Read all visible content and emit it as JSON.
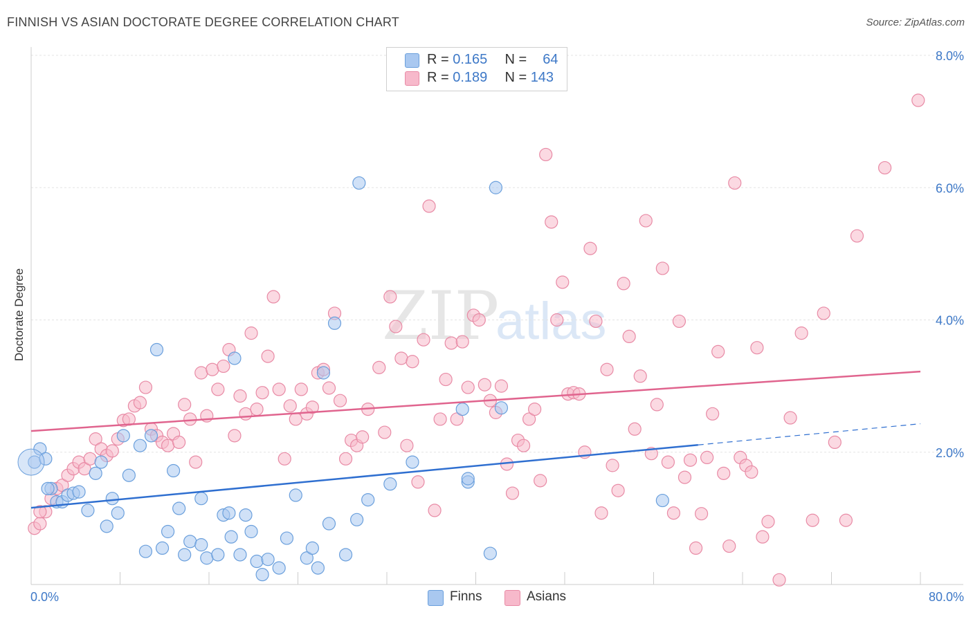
{
  "header": {
    "title": "FINNISH VS ASIAN DOCTORATE DEGREE CORRELATION CHART",
    "source": "Source: ZipAtlas.com"
  },
  "legend": {
    "rows": [
      {
        "r_label": "R =",
        "r_value": "0.165",
        "n_label": "N =",
        "n_value": "64",
        "color": "#a9c8f0"
      },
      {
        "r_label": "R =",
        "r_value": "0.189",
        "n_label": "N =",
        "n_value": "143",
        "color": "#f7b9cb"
      }
    ]
  },
  "bottom_legend": {
    "finns": "Finns",
    "asians": "Asians"
  },
  "watermark": {
    "zip": "ZIP",
    "atlas": "atlas"
  },
  "chart_data": {
    "type": "scatter",
    "title": "FINNISH VS ASIAN DOCTORATE DEGREE CORRELATION CHART",
    "xlabel": "",
    "ylabel": "Doctorate Degree",
    "xlim": [
      0,
      80
    ],
    "ylim": [
      0,
      8.0
    ],
    "x_tick_labels": [
      "0.0%",
      "80.0%"
    ],
    "y_ticks": [
      2.0,
      4.0,
      6.0,
      8.0
    ],
    "y_tick_labels": [
      "2.0%",
      "4.0%",
      "6.0%",
      "8.0%"
    ],
    "grid": true,
    "legend_position": "top-center",
    "series": [
      {
        "name": "Finns",
        "color": "#a9c8f0",
        "stroke": "#6a9fdc",
        "trend": {
          "x0": 0,
          "y0": 1.16,
          "x1": 60,
          "y1": 2.11,
          "dash_to_x": 80,
          "dash_to_y": 2.43,
          "color": "#2f6fd0"
        },
        "points": [
          [
            0.3,
            1.85
          ],
          [
            0.8,
            2.05
          ],
          [
            1.3,
            1.9
          ],
          [
            1.8,
            1.45
          ],
          [
            2.3,
            1.25
          ],
          [
            2.8,
            1.25
          ],
          [
            3.3,
            1.35
          ],
          [
            3.8,
            1.38
          ],
          [
            4.3,
            1.4
          ],
          [
            5.1,
            1.12
          ],
          [
            5.8,
            1.68
          ],
          [
            6.3,
            1.85
          ],
          [
            6.8,
            0.88
          ],
          [
            7.3,
            1.3
          ],
          [
            7.8,
            1.08
          ],
          [
            8.3,
            2.25
          ],
          [
            8.8,
            1.65
          ],
          [
            9.8,
            2.1
          ],
          [
            10.3,
            0.5
          ],
          [
            10.8,
            2.25
          ],
          [
            11.3,
            3.55
          ],
          [
            11.8,
            0.55
          ],
          [
            12.3,
            0.8
          ],
          [
            12.8,
            1.72
          ],
          [
            13.3,
            1.15
          ],
          [
            13.8,
            0.45
          ],
          [
            14.3,
            0.65
          ],
          [
            15.3,
            1.3
          ],
          [
            15.3,
            0.6
          ],
          [
            15.8,
            0.4
          ],
          [
            16.8,
            0.45
          ],
          [
            17.3,
            1.05
          ],
          [
            17.8,
            1.08
          ],
          [
            18.0,
            0.72
          ],
          [
            18.3,
            3.42
          ],
          [
            18.8,
            0.45
          ],
          [
            19.3,
            1.05
          ],
          [
            19.8,
            0.8
          ],
          [
            20.3,
            0.35
          ],
          [
            20.8,
            0.15
          ],
          [
            21.3,
            0.38
          ],
          [
            22.3,
            0.25
          ],
          [
            23.0,
            0.7
          ],
          [
            23.8,
            1.35
          ],
          [
            24.8,
            0.4
          ],
          [
            25.3,
            0.55
          ],
          [
            25.8,
            0.25
          ],
          [
            26.3,
            3.2
          ],
          [
            26.8,
            0.92
          ],
          [
            27.3,
            3.95
          ],
          [
            28.3,
            0.45
          ],
          [
            29.3,
            0.98
          ],
          [
            29.5,
            6.07
          ],
          [
            30.3,
            1.28
          ],
          [
            32.3,
            1.52
          ],
          [
            34.3,
            1.85
          ],
          [
            39.3,
            1.55
          ],
          [
            38.8,
            2.65
          ],
          [
            39.3,
            1.6
          ],
          [
            41.3,
            0.47
          ],
          [
            42.3,
            2.67
          ],
          [
            41.8,
            6.0
          ],
          [
            56.8,
            1.27
          ],
          [
            1.5,
            1.45
          ]
        ]
      },
      {
        "name": "Asians",
        "color": "#f7b9cb",
        "stroke": "#e88aa5",
        "trend": {
          "x0": 0,
          "y0": 2.32,
          "x1": 80,
          "y1": 3.22,
          "color": "#e0648e"
        },
        "points": [
          [
            0.3,
            0.85
          ],
          [
            0.8,
            0.92
          ],
          [
            1.3,
            1.1
          ],
          [
            1.8,
            1.3
          ],
          [
            2.3,
            1.45
          ],
          [
            2.8,
            1.5
          ],
          [
            3.3,
            1.65
          ],
          [
            3.8,
            1.75
          ],
          [
            4.3,
            1.85
          ],
          [
            4.8,
            1.75
          ],
          [
            5.3,
            1.9
          ],
          [
            5.8,
            2.2
          ],
          [
            6.3,
            2.05
          ],
          [
            6.8,
            1.95
          ],
          [
            7.3,
            2.02
          ],
          [
            7.8,
            2.2
          ],
          [
            8.3,
            2.48
          ],
          [
            8.8,
            2.5
          ],
          [
            9.3,
            2.7
          ],
          [
            9.8,
            2.75
          ],
          [
            10.3,
            2.98
          ],
          [
            10.8,
            2.35
          ],
          [
            11.3,
            2.25
          ],
          [
            11.8,
            2.15
          ],
          [
            12.3,
            2.1
          ],
          [
            12.8,
            2.28
          ],
          [
            13.3,
            2.15
          ],
          [
            13.8,
            2.72
          ],
          [
            14.3,
            2.5
          ],
          [
            14.8,
            1.85
          ],
          [
            15.3,
            3.2
          ],
          [
            15.8,
            2.55
          ],
          [
            16.3,
            3.25
          ],
          [
            16.8,
            2.95
          ],
          [
            17.3,
            3.3
          ],
          [
            17.8,
            3.55
          ],
          [
            18.3,
            2.25
          ],
          [
            18.8,
            2.85
          ],
          [
            19.3,
            2.58
          ],
          [
            19.8,
            3.8
          ],
          [
            20.3,
            2.65
          ],
          [
            20.8,
            2.9
          ],
          [
            21.3,
            3.45
          ],
          [
            21.8,
            4.35
          ],
          [
            22.3,
            2.95
          ],
          [
            22.8,
            1.9
          ],
          [
            23.3,
            2.7
          ],
          [
            23.8,
            2.5
          ],
          [
            24.3,
            2.95
          ],
          [
            24.8,
            2.58
          ],
          [
            25.3,
            2.68
          ],
          [
            25.8,
            3.2
          ],
          [
            26.3,
            3.25
          ],
          [
            26.8,
            2.97
          ],
          [
            27.3,
            4.1
          ],
          [
            27.8,
            2.78
          ],
          [
            28.3,
            1.9
          ],
          [
            28.8,
            2.18
          ],
          [
            29.3,
            2.1
          ],
          [
            29.8,
            2.23
          ],
          [
            30.3,
            2.65
          ],
          [
            31.3,
            3.28
          ],
          [
            31.8,
            2.3
          ],
          [
            32.3,
            4.35
          ],
          [
            32.8,
            3.9
          ],
          [
            33.3,
            3.42
          ],
          [
            33.8,
            2.1
          ],
          [
            34.3,
            3.37
          ],
          [
            34.8,
            1.55
          ],
          [
            35.3,
            3.7
          ],
          [
            35.8,
            5.72
          ],
          [
            36.3,
            1.12
          ],
          [
            36.8,
            2.5
          ],
          [
            37.3,
            3.1
          ],
          [
            37.8,
            3.65
          ],
          [
            38.3,
            2.5
          ],
          [
            38.8,
            3.67
          ],
          [
            39.3,
            2.98
          ],
          [
            39.8,
            4.07
          ],
          [
            40.3,
            4.0
          ],
          [
            40.8,
            3.02
          ],
          [
            41.3,
            2.78
          ],
          [
            41.8,
            2.6
          ],
          [
            42.3,
            3.0
          ],
          [
            42.8,
            1.82
          ],
          [
            43.3,
            1.38
          ],
          [
            43.8,
            2.18
          ],
          [
            44.3,
            2.1
          ],
          [
            44.8,
            2.5
          ],
          [
            45.3,
            2.65
          ],
          [
            45.8,
            1.57
          ],
          [
            46.3,
            6.5
          ],
          [
            46.8,
            5.48
          ],
          [
            47.3,
            4.0
          ],
          [
            47.8,
            4.57
          ],
          [
            48.3,
            2.88
          ],
          [
            48.8,
            2.9
          ],
          [
            49.3,
            2.88
          ],
          [
            49.8,
            2.0
          ],
          [
            50.3,
            5.08
          ],
          [
            50.8,
            3.98
          ],
          [
            51.3,
            1.08
          ],
          [
            51.8,
            3.25
          ],
          [
            52.3,
            1.8
          ],
          [
            52.8,
            1.42
          ],
          [
            53.3,
            4.55
          ],
          [
            53.8,
            3.75
          ],
          [
            54.3,
            2.35
          ],
          [
            54.8,
            3.15
          ],
          [
            55.3,
            5.5
          ],
          [
            55.8,
            1.98
          ],
          [
            56.3,
            2.72
          ],
          [
            56.8,
            4.78
          ],
          [
            57.3,
            1.85
          ],
          [
            57.8,
            1.08
          ],
          [
            58.3,
            3.98
          ],
          [
            58.8,
            1.62
          ],
          [
            59.3,
            1.88
          ],
          [
            59.8,
            0.55
          ],
          [
            60.3,
            1.07
          ],
          [
            60.8,
            1.92
          ],
          [
            61.3,
            2.58
          ],
          [
            61.8,
            3.52
          ],
          [
            62.3,
            1.68
          ],
          [
            62.8,
            0.58
          ],
          [
            63.3,
            6.07
          ],
          [
            63.8,
            1.92
          ],
          [
            64.3,
            1.8
          ],
          [
            64.8,
            1.7
          ],
          [
            65.3,
            3.58
          ],
          [
            65.8,
            0.72
          ],
          [
            66.3,
            0.95
          ],
          [
            67.3,
            0.07
          ],
          [
            68.3,
            2.52
          ],
          [
            69.3,
            3.8
          ],
          [
            70.3,
            0.97
          ],
          [
            71.3,
            4.1
          ],
          [
            72.3,
            2.15
          ],
          [
            73.3,
            0.97
          ],
          [
            74.3,
            5.27
          ],
          [
            76.8,
            6.3
          ],
          [
            79.8,
            7.32
          ],
          [
            0.8,
            1.1
          ]
        ]
      }
    ]
  }
}
